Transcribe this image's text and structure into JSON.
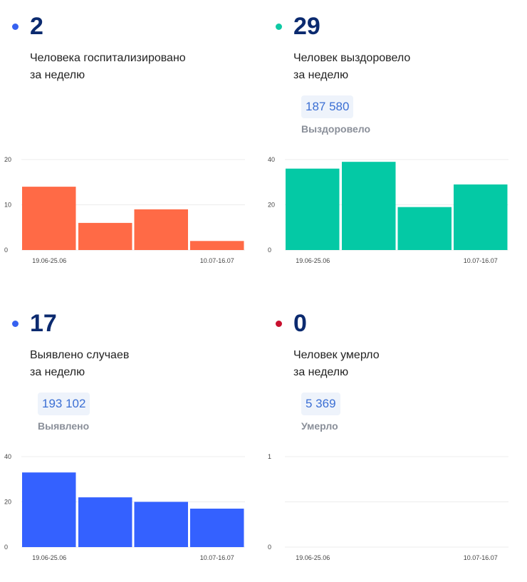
{
  "panels": [
    {
      "value": "2",
      "dot_color": "#3661f0",
      "label_line1": "Человека госпитализировано",
      "label_line2": "за неделю",
      "total": null,
      "total_label": null
    },
    {
      "value": "29",
      "dot_color": "#0ec9a4",
      "label_line1": "Человек выздоровело",
      "label_line2": "за неделю",
      "total": "187 580",
      "total_label": "Выздоровело"
    },
    {
      "value": "17",
      "dot_color": "#3661f0",
      "label_line1": "Выявлено случаев",
      "label_line2": "за неделю",
      "total": "193 102",
      "total_label": "Выявлено"
    },
    {
      "value": "0",
      "dot_color": "#c8102e",
      "label_line1": "Человек умерло",
      "label_line2": "за неделю",
      "total": "5 369",
      "total_label": "Умерло"
    }
  ],
  "chart_data": [
    {
      "type": "bar",
      "color": "#ff6a46",
      "categories": [
        "19.06-25.06",
        "",
        "",
        "10.07-16.07"
      ],
      "values": [
        14,
        6,
        9,
        2
      ],
      "ylim": [
        0,
        20
      ],
      "yticks": [
        "0",
        "10",
        "20"
      ],
      "grid": true
    },
    {
      "type": "bar",
      "color": "#04c9a5",
      "categories": [
        "19.06-25.06",
        "",
        "",
        "10.07-16.07"
      ],
      "values": [
        36,
        39,
        19,
        29
      ],
      "ylim": [
        0,
        40
      ],
      "yticks": [
        "0",
        "20",
        "40"
      ],
      "grid": true
    },
    {
      "type": "bar",
      "color": "#3461ff",
      "categories": [
        "19.06-25.06",
        "",
        "",
        "10.07-16.07"
      ],
      "values": [
        33,
        22,
        20,
        17
      ],
      "ylim": [
        0,
        40
      ],
      "yticks": [
        "0",
        "20",
        "40"
      ],
      "grid": true
    },
    {
      "type": "bar",
      "color": "#c8102e",
      "categories": [
        "19.06-25.06",
        "",
        "",
        "10.07-16.07"
      ],
      "values": [
        0,
        0,
        0,
        0
      ],
      "ylim": [
        0,
        1
      ],
      "yticks": [
        "0",
        "",
        "1"
      ],
      "grid": true
    }
  ]
}
